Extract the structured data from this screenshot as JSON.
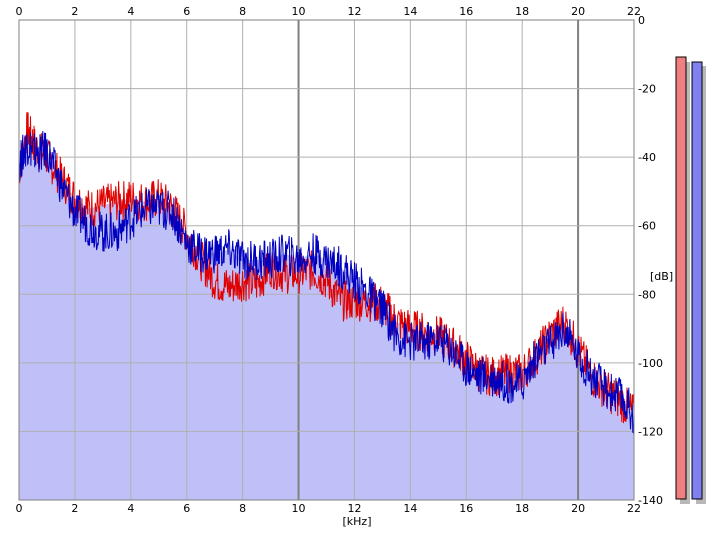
{
  "chart_data": {
    "type": "line",
    "title": "",
    "xlabel": "[kHz]",
    "ylabel": "[dB]",
    "xlim": [
      0,
      22
    ],
    "ylim": [
      -140,
      0
    ],
    "x_ticks": [
      0,
      2,
      4,
      6,
      8,
      10,
      12,
      14,
      16,
      18,
      20,
      22
    ],
    "y_ticks": [
      0,
      -20,
      -40,
      -60,
      -80,
      -100,
      -120,
      -140
    ],
    "grid": true,
    "fill_color": "#c0c0f8",
    "series": [
      {
        "color": "#e00000",
        "x": [
          0.0,
          0.3,
          0.6,
          1.0,
          1.5,
          2.0,
          2.5,
          3.0,
          3.5,
          4.0,
          4.5,
          5.0,
          5.5,
          6.0,
          6.5,
          7.0,
          7.5,
          8.0,
          8.5,
          9.0,
          9.5,
          10.0,
          10.5,
          11.0,
          11.5,
          12.0,
          12.5,
          13.0,
          13.5,
          14.0,
          14.5,
          15.0,
          15.5,
          16.0,
          16.5,
          17.0,
          17.5,
          18.0,
          18.5,
          19.0,
          19.5,
          20.0,
          20.5,
          21.0,
          21.5,
          22.0
        ],
        "y": [
          -44,
          -32,
          -37,
          -40,
          -46,
          -52,
          -55,
          -54,
          -53,
          -52,
          -53,
          -52,
          -55,
          -62,
          -70,
          -76,
          -78,
          -76,
          -77,
          -72,
          -74,
          -74,
          -73,
          -76,
          -82,
          -82,
          -82,
          -83,
          -88,
          -90,
          -91,
          -92,
          -95,
          -99,
          -103,
          -104,
          -103,
          -103,
          -98,
          -92,
          -88,
          -96,
          -104,
          -108,
          -111,
          -115
        ]
      },
      {
        "color": "#0000c0",
        "x": [
          0.0,
          0.3,
          0.6,
          1.0,
          1.5,
          2.0,
          2.5,
          3.0,
          3.5,
          4.0,
          4.5,
          5.0,
          5.5,
          6.0,
          6.5,
          7.0,
          7.5,
          8.0,
          8.5,
          9.0,
          9.5,
          10.0,
          10.5,
          11.0,
          11.5,
          12.0,
          12.5,
          13.0,
          13.5,
          14.0,
          14.5,
          15.0,
          15.5,
          16.0,
          16.5,
          17.0,
          17.5,
          18.0,
          18.5,
          19.0,
          19.5,
          20.0,
          20.5,
          21.0,
          21.5,
          22.0
        ],
        "y": [
          -42,
          -36,
          -39,
          -38,
          -48,
          -56,
          -60,
          -62,
          -62,
          -58,
          -55,
          -55,
          -56,
          -65,
          -68,
          -68,
          -67,
          -70,
          -70,
          -70,
          -68,
          -70,
          -68,
          -70,
          -72,
          -76,
          -80,
          -84,
          -92,
          -94,
          -94,
          -93,
          -96,
          -101,
          -104,
          -104,
          -106,
          -106,
          -98,
          -95,
          -90,
          -98,
          -104,
          -108,
          -110,
          -115
        ]
      }
    ]
  },
  "meters": {
    "left_color": "#f08080",
    "right_color": "#8080f0"
  }
}
